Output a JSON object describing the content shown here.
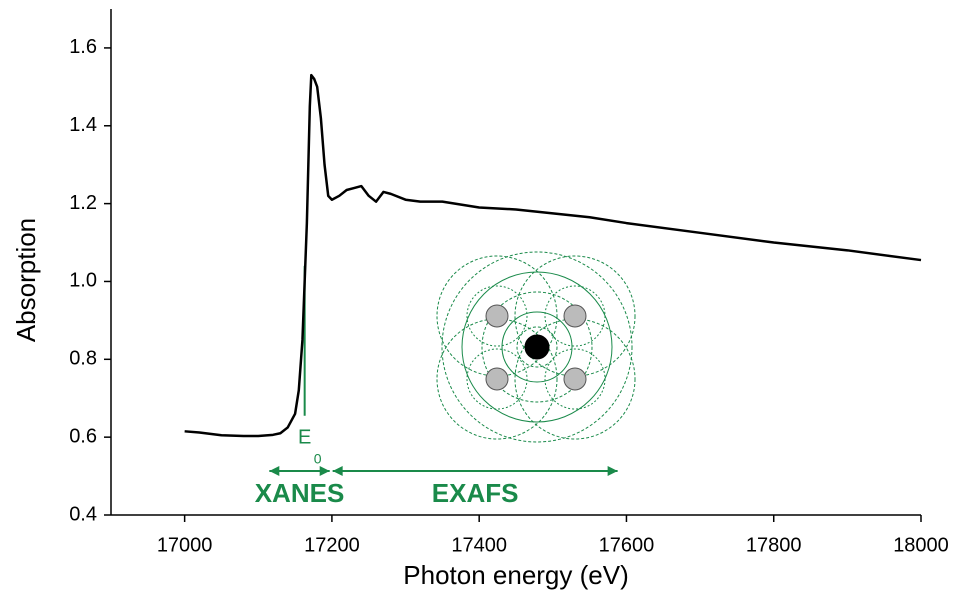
{
  "chart_data": {
    "type": "line",
    "x_label": "Photon energy (eV)",
    "y_label": "Absorption",
    "series": [
      {
        "name": "Absorption",
        "color": "#000000",
        "x": [
          17000,
          17020,
          17050,
          17080,
          17100,
          17120,
          17130,
          17140,
          17150,
          17155,
          17160,
          17163,
          17166,
          17168,
          17170,
          17172,
          17176,
          17180,
          17185,
          17190,
          17195,
          17200,
          17210,
          17220,
          17230,
          17240,
          17250,
          17260,
          17270,
          17280,
          17300,
          17320,
          17350,
          17400,
          17450,
          17500,
          17550,
          17600,
          17700,
          17800,
          17900,
          18000
        ],
        "values": [
          0.615,
          0.612,
          0.605,
          0.603,
          0.603,
          0.606,
          0.61,
          0.625,
          0.66,
          0.72,
          0.85,
          1.0,
          1.15,
          1.3,
          1.45,
          1.53,
          1.52,
          1.5,
          1.42,
          1.3,
          1.22,
          1.21,
          1.22,
          1.235,
          1.24,
          1.245,
          1.22,
          1.205,
          1.23,
          1.225,
          1.21,
          1.205,
          1.205,
          1.19,
          1.185,
          1.175,
          1.165,
          1.15,
          1.125,
          1.1,
          1.08,
          1.055
        ]
      }
    ],
    "xlim": [
      16900,
      18000
    ],
    "ylim": [
      0.4,
      1.7
    ],
    "xticks": [
      17000,
      17200,
      17400,
      17600,
      17800,
      18000
    ],
    "yticks": [
      0.4,
      0.6,
      0.8,
      {
        "value": 1,
        "label": "1.0"
      },
      1.2,
      1.4,
      1.6
    ],
    "annotation_color": "#1a8a4a",
    "e0": {
      "label": "E",
      "subscript": "0",
      "x": 17163,
      "y": [
        0.655,
        1.04
      ]
    },
    "spans": [
      {
        "label": "XANES",
        "x": [
          17115,
          17197
        ]
      },
      {
        "label": "EXAFS",
        "x": [
          17201,
          17588
        ]
      }
    ]
  }
}
